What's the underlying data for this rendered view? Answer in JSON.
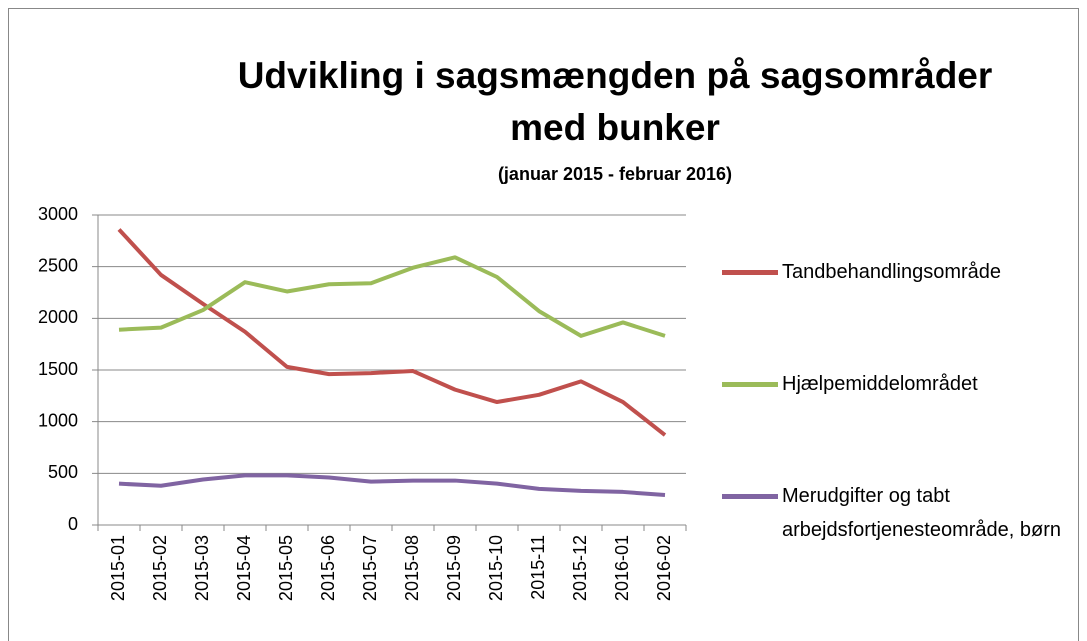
{
  "chart_data": {
    "type": "line",
    "title": "Udvikling i sagsmængden på sagsområder med bunker",
    "subtitle": "(januar 2015 - februar 2016)",
    "categories": [
      "2015-01",
      "2015-02",
      "2015-03",
      "2015-04",
      "2015-05",
      "2015-06",
      "2015-07",
      "2015-08",
      "2015-09",
      "2015-10",
      "2015-11",
      "2015-12",
      "2016-01",
      "2016-02"
    ],
    "series": [
      {
        "name": "Tandbehandlingsområde",
        "color": "#c0504d",
        "values": [
          2860,
          2420,
          2140,
          1870,
          1530,
          1460,
          1470,
          1490,
          1310,
          1190,
          1260,
          1390,
          1190,
          870
        ]
      },
      {
        "name": "Hjælpemiddelområdet",
        "color": "#9bbb59",
        "values": [
          1890,
          1910,
          2080,
          2350,
          2260,
          2330,
          2340,
          2490,
          2590,
          2400,
          2070,
          1830,
          1960,
          1830
        ]
      },
      {
        "name": "Merudgifter og tabt arbejdsfortjenesteområde, børn",
        "color": "#8064a2",
        "values": [
          400,
          380,
          440,
          480,
          480,
          460,
          420,
          430,
          430,
          400,
          350,
          330,
          320,
          290
        ]
      }
    ],
    "ylim": [
      0,
      3000
    ],
    "yticks": [
      0,
      500,
      1000,
      1500,
      2000,
      2500,
      3000
    ],
    "grid": true,
    "legend": "right"
  }
}
